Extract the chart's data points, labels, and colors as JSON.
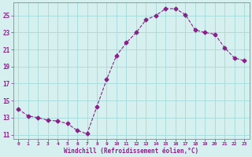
{
  "x": [
    0,
    1,
    2,
    3,
    4,
    5,
    6,
    7,
    8,
    9,
    10,
    11,
    12,
    13,
    14,
    15,
    16,
    17,
    18,
    19,
    20,
    21,
    22,
    23
  ],
  "y": [
    14.0,
    13.2,
    13.0,
    12.7,
    12.6,
    12.3,
    11.5,
    11.1,
    14.3,
    17.5,
    20.3,
    21.8,
    23.0,
    24.5,
    25.0,
    25.8,
    25.8,
    25.1,
    23.3,
    23.0,
    22.8,
    21.2,
    20.0,
    19.7
  ],
  "line_color": "#882288",
  "marker": "D",
  "marker_size": 2.5,
  "bg_color": "#d6f0f0",
  "grid_color": "#aadddd",
  "ylabel_ticks": [
    11,
    13,
    15,
    17,
    19,
    21,
    23,
    25
  ],
  "xlabel": "Windchill (Refroidissement éolien,°C)",
  "xlim": [
    -0.5,
    23.5
  ],
  "ylim": [
    10.5,
    26.5
  ],
  "xtick_labels": [
    "0",
    "1",
    "2",
    "3",
    "4",
    "5",
    "6",
    "7",
    "8",
    "9",
    "10",
    "11",
    "12",
    "13",
    "14",
    "15",
    "16",
    "17",
    "18",
    "19",
    "20",
    "21",
    "22",
    "23"
  ],
  "axis_color": "#882288",
  "tick_color": "#882288",
  "label_color": "#882288",
  "spine_color": "#888899"
}
